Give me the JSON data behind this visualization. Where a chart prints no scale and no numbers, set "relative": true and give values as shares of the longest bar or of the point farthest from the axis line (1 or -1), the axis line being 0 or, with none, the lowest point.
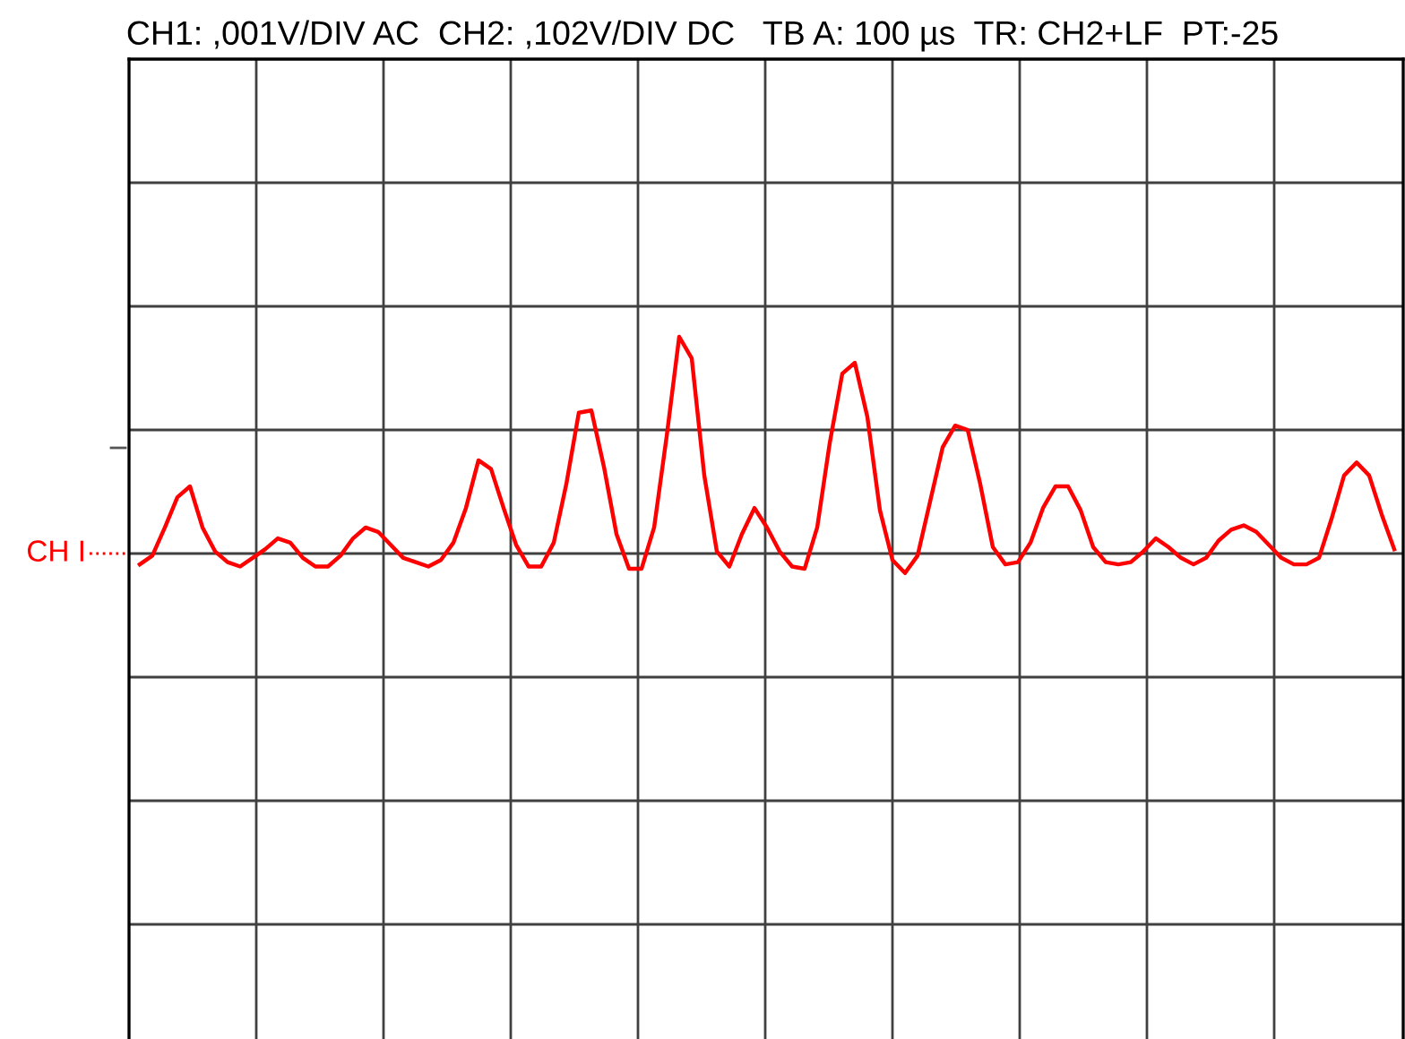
{
  "chart_data": {
    "type": "line",
    "title": "CH1: ,001V/DIV AC  CH2: ,102V/DIV DC   TB A: 100 µs  TR: CH2+LF  PT:-25",
    "relative": true,
    "grid": true,
    "marker": "none",
    "line_style": "solid",
    "categories": [
      null,
      null,
      null,
      null,
      null,
      null,
      null,
      null,
      null,
      null,
      null,
      null,
      null,
      null,
      null,
      null,
      null,
      null,
      null,
      null,
      null,
      null,
      null,
      null,
      null,
      null,
      null,
      null,
      null,
      null,
      null,
      null,
      null,
      null,
      null,
      null,
      null,
      null,
      null,
      null,
      null,
      null,
      null,
      null,
      null,
      null,
      null,
      null,
      null,
      null,
      null,
      null,
      null,
      null,
      null,
      null,
      null,
      null,
      null,
      null,
      null,
      null,
      null,
      null,
      null,
      null,
      null,
      null,
      null,
      null,
      null,
      null,
      null,
      null,
      null,
      null,
      null,
      null,
      null,
      null,
      null,
      null,
      null,
      null,
      null,
      null,
      null,
      null,
      null,
      null,
      null,
      null,
      null,
      null,
      null,
      null,
      null,
      null,
      null,
      null,
      null
    ],
    "series": [
      {
        "color": "#ff0000",
        "values": [
          -0.05,
          -0.01,
          0.12,
          0.26,
          0.31,
          0.12,
          0.01,
          -0.04,
          -0.06,
          -0.02,
          0.02,
          0.07,
          0.05,
          -0.02,
          -0.06,
          -0.06,
          -0.01,
          0.07,
          0.12,
          0.1,
          0.04,
          -0.02,
          -0.04,
          -0.06,
          -0.03,
          0.05,
          0.21,
          0.43,
          0.39,
          0.21,
          0.04,
          -0.06,
          -0.06,
          0.05,
          0.32,
          0.65,
          0.66,
          0.4,
          0.09,
          -0.07,
          -0.07,
          0.12,
          0.54,
          1.0,
          0.9,
          0.36,
          0.01,
          -0.06,
          0.09,
          0.21,
          0.12,
          0.01,
          -0.06,
          -0.07,
          0.12,
          0.51,
          0.83,
          0.88,
          0.63,
          0.2,
          -0.03,
          -0.09,
          -0.01,
          0.24,
          0.49,
          0.59,
          0.57,
          0.32,
          0.03,
          -0.05,
          -0.04,
          0.05,
          0.21,
          0.31,
          0.31,
          0.2,
          0.03,
          -0.04,
          -0.05,
          -0.04,
          0.01,
          0.07,
          0.03,
          -0.02,
          -0.05,
          -0.02,
          0.06,
          0.11,
          0.13,
          0.1,
          0.04,
          -0.02,
          -0.05,
          -0.05,
          -0.02,
          0.16,
          0.36,
          0.42,
          0.36,
          0.18,
          0.02
        ]
      }
    ],
    "annotations": [
      "CH I"
    ]
  }
}
